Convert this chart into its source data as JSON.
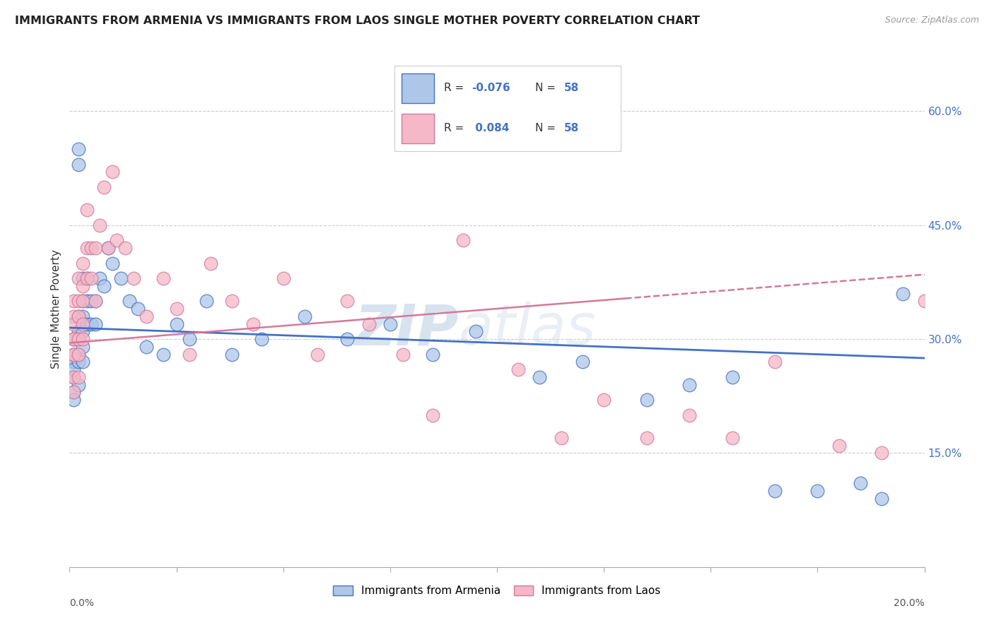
{
  "title": "IMMIGRANTS FROM ARMENIA VS IMMIGRANTS FROM LAOS SINGLE MOTHER POVERTY CORRELATION CHART",
  "source": "Source: ZipAtlas.com",
  "ylabel": "Single Mother Poverty",
  "legend_armenia": "Immigrants from Armenia",
  "legend_laos": "Immigrants from Laos",
  "r_armenia": "-0.076",
  "n_armenia": "58",
  "r_laos": "0.084",
  "n_laos": "58",
  "color_armenia": "#aec6e8",
  "color_laos": "#f4b8c8",
  "line_color_armenia": "#4472c4",
  "line_color_laos": "#d4789a",
  "watermark_zip": "ZIP",
  "watermark_atlas": "atlas",
  "armenia_x": [
    0.001,
    0.001,
    0.001,
    0.001,
    0.001,
    0.001,
    0.001,
    0.001,
    0.002,
    0.002,
    0.002,
    0.002,
    0.002,
    0.002,
    0.002,
    0.002,
    0.003,
    0.003,
    0.003,
    0.003,
    0.003,
    0.003,
    0.004,
    0.004,
    0.004,
    0.005,
    0.005,
    0.006,
    0.006,
    0.007,
    0.008,
    0.009,
    0.01,
    0.012,
    0.014,
    0.016,
    0.018,
    0.022,
    0.025,
    0.028,
    0.032,
    0.038,
    0.045,
    0.055,
    0.065,
    0.075,
    0.085,
    0.095,
    0.11,
    0.12,
    0.135,
    0.145,
    0.155,
    0.165,
    0.175,
    0.185,
    0.19,
    0.195
  ],
  "armenia_y": [
    0.28,
    0.27,
    0.27,
    0.25,
    0.3,
    0.26,
    0.23,
    0.22,
    0.55,
    0.53,
    0.33,
    0.31,
    0.28,
    0.3,
    0.27,
    0.24,
    0.38,
    0.35,
    0.33,
    0.31,
    0.29,
    0.27,
    0.38,
    0.35,
    0.32,
    0.35,
    0.32,
    0.35,
    0.32,
    0.38,
    0.37,
    0.42,
    0.4,
    0.38,
    0.35,
    0.34,
    0.29,
    0.28,
    0.32,
    0.3,
    0.35,
    0.28,
    0.3,
    0.33,
    0.3,
    0.32,
    0.28,
    0.31,
    0.25,
    0.27,
    0.22,
    0.24,
    0.25,
    0.1,
    0.1,
    0.11,
    0.09,
    0.36
  ],
  "laos_x": [
    0.001,
    0.001,
    0.001,
    0.001,
    0.001,
    0.001,
    0.001,
    0.001,
    0.001,
    0.002,
    0.002,
    0.002,
    0.002,
    0.002,
    0.002,
    0.003,
    0.003,
    0.003,
    0.003,
    0.003,
    0.004,
    0.004,
    0.004,
    0.005,
    0.005,
    0.006,
    0.006,
    0.007,
    0.008,
    0.009,
    0.01,
    0.011,
    0.013,
    0.015,
    0.018,
    0.022,
    0.025,
    0.028,
    0.033,
    0.038,
    0.043,
    0.05,
    0.058,
    0.065,
    0.07,
    0.078,
    0.085,
    0.092,
    0.105,
    0.115,
    0.125,
    0.135,
    0.145,
    0.155,
    0.165,
    0.18,
    0.19,
    0.2
  ],
  "laos_y": [
    0.3,
    0.28,
    0.33,
    0.32,
    0.35,
    0.3,
    0.28,
    0.25,
    0.23,
    0.38,
    0.35,
    0.33,
    0.3,
    0.28,
    0.25,
    0.4,
    0.37,
    0.35,
    0.32,
    0.3,
    0.47,
    0.42,
    0.38,
    0.42,
    0.38,
    0.42,
    0.35,
    0.45,
    0.5,
    0.42,
    0.52,
    0.43,
    0.42,
    0.38,
    0.33,
    0.38,
    0.34,
    0.28,
    0.4,
    0.35,
    0.32,
    0.38,
    0.28,
    0.35,
    0.32,
    0.28,
    0.2,
    0.43,
    0.26,
    0.17,
    0.22,
    0.17,
    0.2,
    0.17,
    0.27,
    0.16,
    0.15,
    0.35
  ],
  "xmin": 0.0,
  "xmax": 0.2,
  "ymin": 0.0,
  "ymax": 0.68,
  "ytick_positions": [
    0.15,
    0.3,
    0.45,
    0.6
  ],
  "ytick_labels": [
    "15.0%",
    "30.0%",
    "45.0%",
    "60.0%"
  ]
}
